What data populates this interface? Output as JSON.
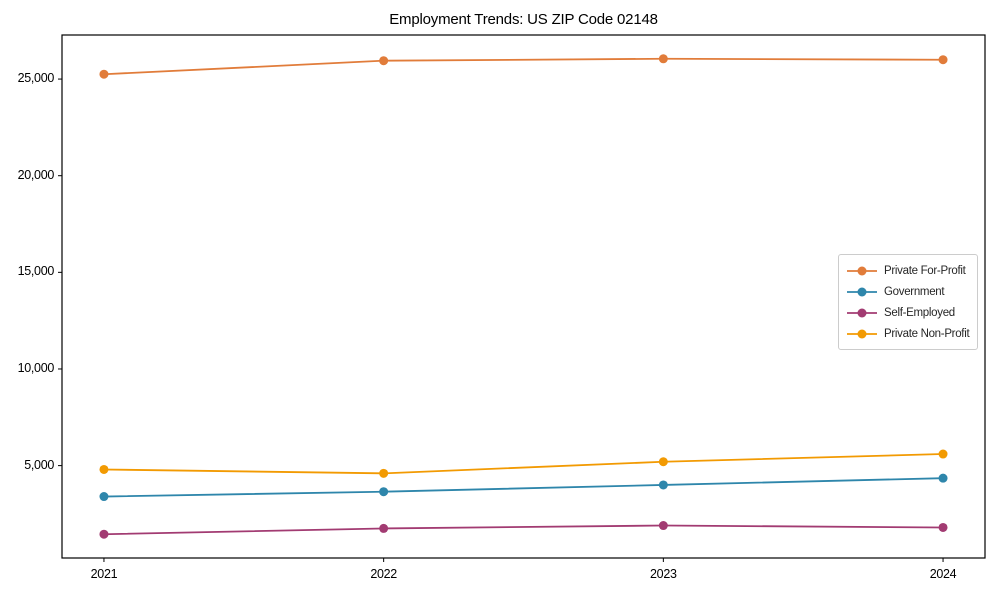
{
  "figure": {
    "background": "#ffffff",
    "frame_color": "#000000",
    "tick_color": "#000000"
  },
  "chart_data": {
    "type": "line",
    "title": "Employment Trends: US ZIP Code 02148",
    "xlabel": "",
    "ylabel": "",
    "x": [
      2021,
      2022,
      2023,
      2024
    ],
    "x_tick_labels": [
      "2021",
      "2022",
      "2023",
      "2024"
    ],
    "y_ticks": [
      {
        "value": 5000,
        "label": "5,000"
      },
      {
        "value": 10000,
        "label": "10,000"
      },
      {
        "value": 15000,
        "label": "15,000"
      },
      {
        "value": 20000,
        "label": "20,000"
      },
      {
        "value": 25000,
        "label": "25,000"
      }
    ],
    "xlim": [
      2020.85,
      2024.15
    ],
    "ylim": [
      220,
      27280
    ],
    "grid": false,
    "legend_position": "center-right",
    "series": [
      {
        "name": "Private For-Profit",
        "color": "#E17C3A",
        "values": [
          25250,
          25950,
          26050,
          26000
        ]
      },
      {
        "name": "Government",
        "color": "#2E86AB",
        "values": [
          3400,
          3650,
          4000,
          4350
        ]
      },
      {
        "name": "Self-Employed",
        "color": "#A23B72",
        "values": [
          1450,
          1750,
          1900,
          1800
        ]
      },
      {
        "name": "Private Non-Profit",
        "color": "#F29A02",
        "values": [
          4800,
          4600,
          5200,
          5600
        ]
      }
    ]
  }
}
